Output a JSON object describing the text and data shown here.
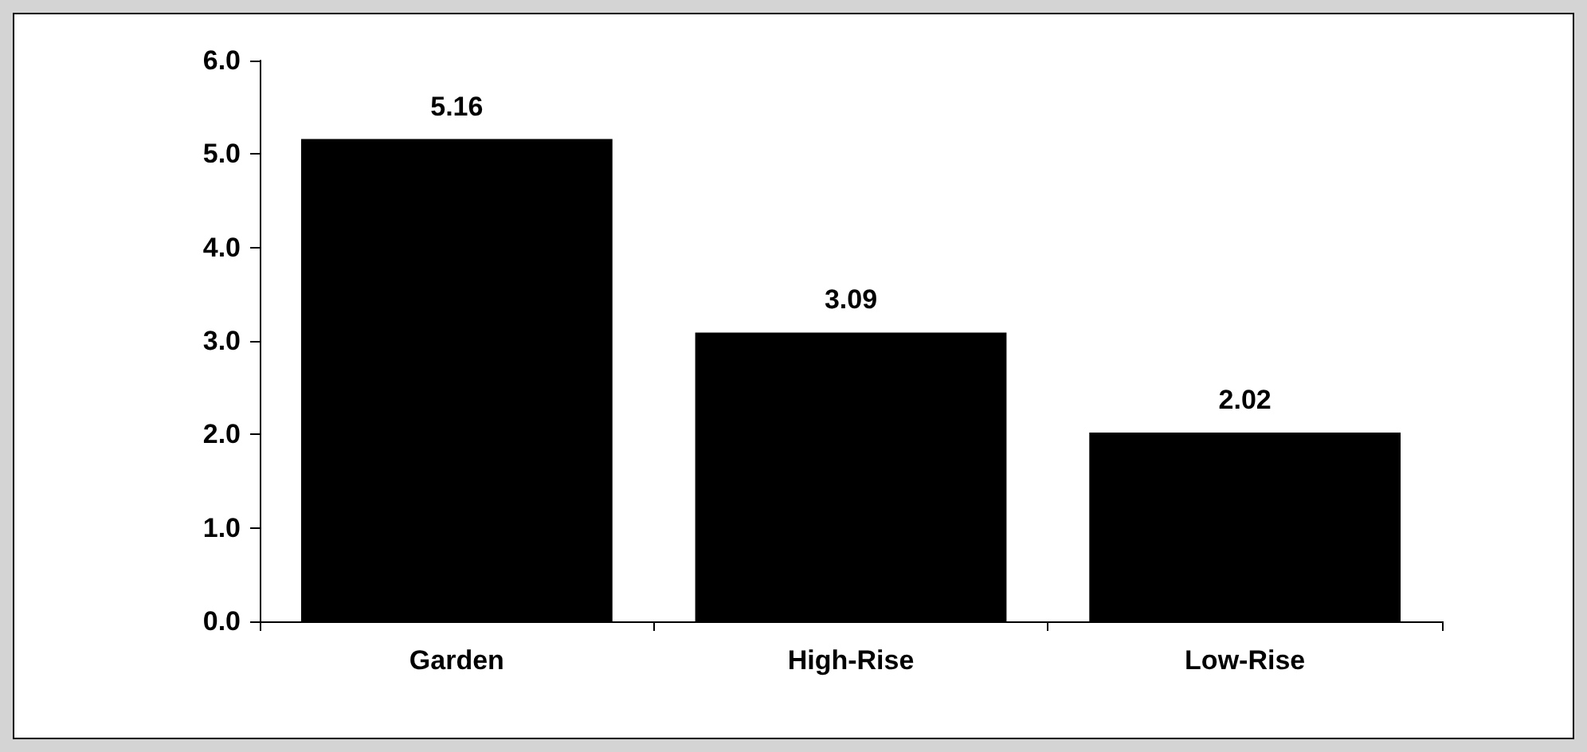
{
  "chart_data": {
    "type": "bar",
    "categories": [
      "Garden",
      "High-Rise",
      "Low-Rise"
    ],
    "values": [
      5.16,
      3.09,
      2.02
    ],
    "color": "#000000",
    "ylim": [
      0,
      6
    ],
    "yticks": [
      {
        "value": 0,
        "label": "0.0"
      },
      {
        "value": 1,
        "label": "1.0"
      },
      {
        "value": 2,
        "label": "2.0"
      },
      {
        "value": 3,
        "label": "3.0"
      },
      {
        "value": 4,
        "label": "4.0"
      },
      {
        "value": 5,
        "label": "5.0"
      },
      {
        "value": 6,
        "label": "6.0"
      }
    ],
    "data_labels": true,
    "grid": false
  }
}
